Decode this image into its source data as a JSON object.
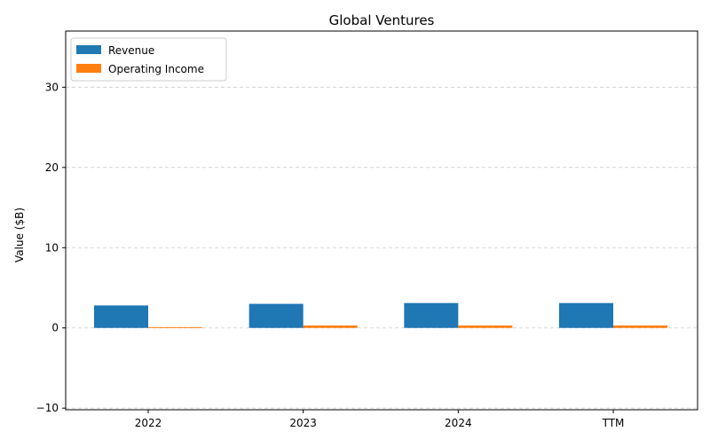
{
  "chart_data": {
    "type": "bar",
    "title": "Global Ventures",
    "xlabel": "",
    "ylabel": "Value ($B)",
    "categories": [
      "2022",
      "2023",
      "2024",
      "TTM"
    ],
    "series": [
      {
        "name": "Revenue",
        "color": "#1f77b4",
        "values": [
          2.8,
          3.0,
          3.1,
          3.1
        ]
      },
      {
        "name": "Operating Income",
        "color": "#ff7f0e",
        "values": [
          0.1,
          0.3,
          0.3,
          0.3
        ]
      }
    ],
    "ylim": [
      -10.2,
      37
    ],
    "yticks": [
      -10,
      0,
      10,
      20,
      30
    ],
    "grid": true,
    "legend_position": "top-left"
  }
}
